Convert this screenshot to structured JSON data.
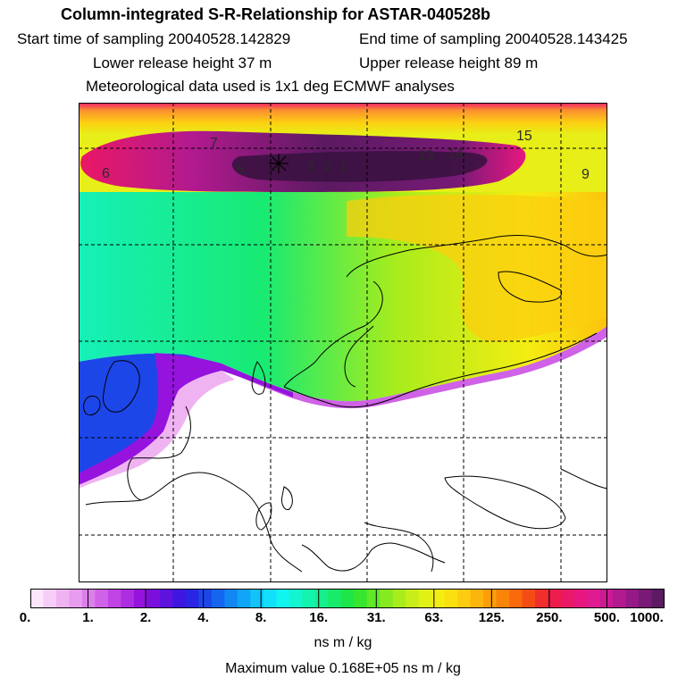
{
  "header": {
    "title": "Column-integrated S-R-Relationship for ASTAR-040528b",
    "start_time": "Start time of sampling 20040528.142829",
    "end_time": "End time of sampling 20040528.143425",
    "lower_release": "Lower release height   37 m",
    "upper_release": "Upper release height   89 m",
    "met_data": "Meteorological data used is 1x1 deg ECMWF analyses"
  },
  "map": {
    "contour_labels": [
      "6",
      "7",
      "5",
      "4",
      "3",
      "2",
      "1",
      "13",
      "14",
      "15",
      "9"
    ]
  },
  "colorbar": {
    "tick_labels": [
      "0.",
      "1.",
      "2.",
      "4.",
      "8.",
      "16.",
      "31.",
      "63.",
      "125.",
      "250.",
      "500.",
      "1000."
    ],
    "units": "ns m / kg",
    "colors": [
      "#fbe6fb",
      "#f6cdf6",
      "#efb3f2",
      "#e79cef",
      "#dc7fea",
      "#cf62e6",
      "#c043e3",
      "#ad2de0",
      "#9513dd",
      "#7b10dc",
      "#5e12de",
      "#3f16e1",
      "#2a25e4",
      "#1c46e8",
      "#1466ee",
      "#1287f3",
      "#10a5f6",
      "#11c3f8",
      "#11dffb",
      "#10f5f0",
      "#12f5cf",
      "#14f3ad",
      "#16ef8c",
      "#18ea6a",
      "#1ee548",
      "#38e52e",
      "#5ee828",
      "#85ea22",
      "#a8ec1c",
      "#c7ee18",
      "#e1f015",
      "#f4ed12",
      "#fbe010",
      "#fccc0e",
      "#fcb50c",
      "#fb9e0a",
      "#fa8408",
      "#f86a0c",
      "#f54b14",
      "#f02e2d",
      "#ec1d4a",
      "#ea1866",
      "#e71780",
      "#df1b92",
      "#cb1a94",
      "#b21a8f",
      "#951986",
      "#781a76",
      "#5b1a62"
    ]
  },
  "max_value": "Maximum value  0.168E+05 ns m / kg"
}
